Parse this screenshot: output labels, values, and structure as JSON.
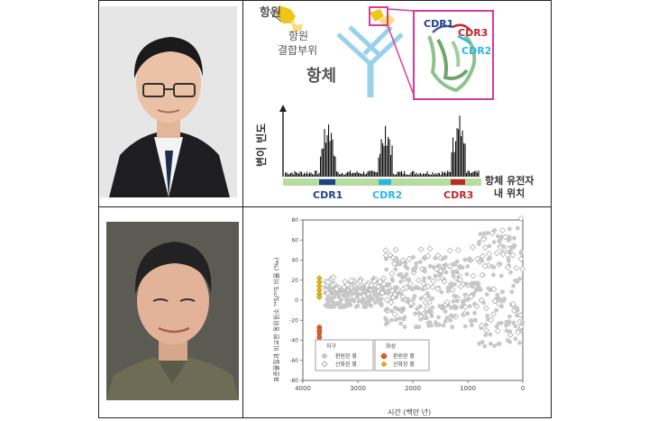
{
  "antibody_diagram": {
    "antigen_label": "항원",
    "binding_site_label": [
      "항원",
      "결합부위"
    ],
    "antibody_label": "항체",
    "cdr_labels": [
      "CDR1",
      "CDR3",
      "CDR2"
    ],
    "y_axis_label": "변이 빈도",
    "x_axis_label": [
      "항체 유전자",
      "내 위치"
    ],
    "segment_labels": [
      "CDR1",
      "CDR2",
      "CDR3"
    ],
    "colors": {
      "cdr1": "#1f3f8f",
      "cdr2": "#29b6e8",
      "cdr3": "#c0272d",
      "gene_bar": "#b7dca0",
      "antigen": "#f0c419",
      "frame": "#d63b9a"
    }
  },
  "isotope_chart": {
    "y_axis_label": "표준물질과 비교한 동위원소 ³⁴S/³²S 비율 (‰)",
    "x_axis_label": "시간 (백만 년)",
    "x_ticks": [
      "4000",
      "3000",
      "2000",
      "1000",
      "0"
    ],
    "y_ticks": [
      "80",
      "60",
      "40",
      "20",
      "0",
      "-20",
      "-40",
      "-60",
      "-80"
    ],
    "legend": {
      "earth_title": "지구",
      "earth_items": [
        "환원된 황",
        "산화된 황"
      ],
      "mars_title": "화성",
      "mars_items": [
        "환원된 황",
        "산화된 황"
      ]
    },
    "colors": {
      "earth_reduced": "#c8c8c8",
      "earth_oxidized": "#ffffff",
      "mars_reduced": "#e0602a",
      "mars_oxidized": "#e6b800"
    }
  },
  "chart_data": {
    "type": "scatter",
    "xlabel": "시간 (백만 년)",
    "ylabel": "표준물질과 비교한 동위원소 ³⁴S/³²S 비율 (‰)",
    "xlim": [
      4000,
      0
    ],
    "ylim": [
      -80,
      80
    ],
    "series": [
      {
        "name": "화성 환원된 황",
        "points": [
          [
            3700,
            -27
          ],
          [
            3700,
            -30
          ],
          [
            3700,
            -33
          ],
          [
            3700,
            -37
          ]
        ]
      },
      {
        "name": "화성 산화된 황",
        "points": [
          [
            3700,
            22
          ],
          [
            3700,
            18
          ],
          [
            3700,
            14
          ],
          [
            3700,
            10
          ],
          [
            3700,
            6
          ],
          [
            3700,
            3
          ]
        ]
      }
    ]
  }
}
